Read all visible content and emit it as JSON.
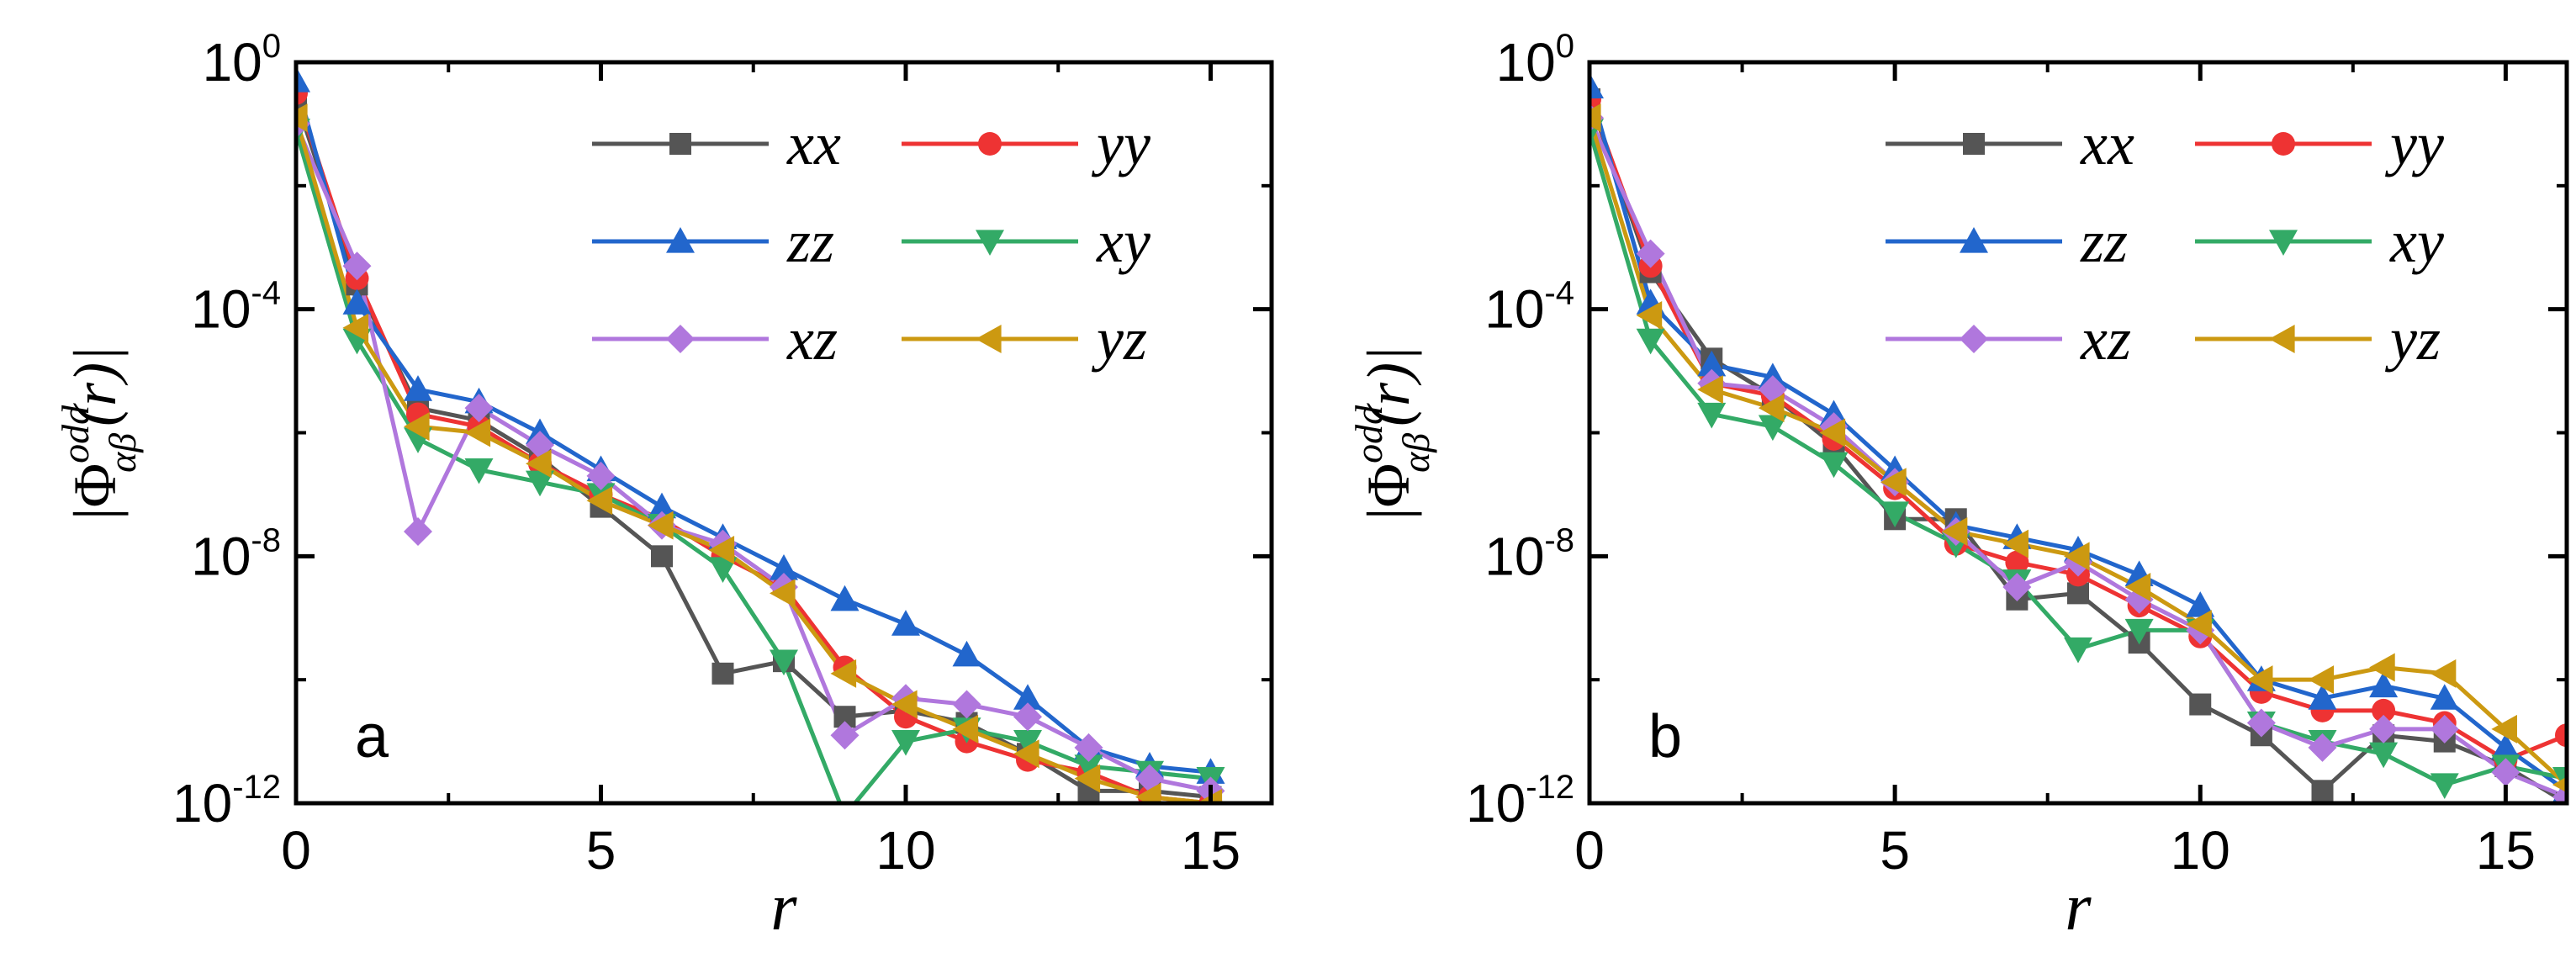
{
  "figure": {
    "ylabel": "|Φ^{odd}_{αβ}(r)|",
    "xlabel": "r"
  },
  "chart_data": [
    {
      "type": "line",
      "panel": "a",
      "xlabel": "r",
      "ylabel": "|Φ^{odd}_{αβ}(r)|",
      "xlim": [
        0,
        16
      ],
      "ylim_log10": [
        -12,
        0
      ],
      "xticks": [
        0,
        5,
        10,
        15
      ],
      "yticks": [
        {
          "base": "10",
          "exp": "0",
          "value": 0
        },
        {
          "base": "10",
          "exp": "-4",
          "value": -4
        },
        {
          "base": "10",
          "exp": "-8",
          "value": -8
        },
        {
          "base": "10",
          "exp": "-12",
          "value": -12
        }
      ],
      "x": [
        0,
        1,
        2,
        3,
        4,
        5,
        6,
        7,
        8,
        9,
        10,
        11,
        12,
        13,
        14,
        15
      ],
      "series": [
        {
          "name": "xx",
          "color": "#555555",
          "marker": "square",
          "log10_values": [
            -0.6,
            -3.6,
            -5.6,
            -5.8,
            -6.4,
            -7.2,
            -8.0,
            -9.9,
            -9.7,
            -10.6,
            -10.5,
            -10.7,
            -11.2,
            -11.8,
            -11.8,
            -11.9
          ]
        },
        {
          "name": "yy",
          "color": "#ee3333",
          "marker": "circle",
          "log10_values": [
            -0.5,
            -3.5,
            -5.7,
            -5.9,
            -6.5,
            -7.0,
            -7.4,
            -8.0,
            -8.5,
            -9.8,
            -10.6,
            -11.0,
            -11.3,
            -11.5,
            -11.9,
            -12.0
          ]
        },
        {
          "name": "zz",
          "color": "#2266cc",
          "marker": "triangle-up",
          "log10_values": [
            -0.3,
            -3.9,
            -5.3,
            -5.5,
            -6.0,
            -6.6,
            -7.2,
            -7.7,
            -8.2,
            -8.7,
            -9.1,
            -9.6,
            -10.3,
            -11.1,
            -11.4,
            -11.5
          ]
        },
        {
          "name": "xy",
          "color": "#33aa66",
          "marker": "triangle-down",
          "log10_values": [
            -1.1,
            -4.5,
            -6.1,
            -6.6,
            -6.8,
            -7.0,
            -7.5,
            -8.2,
            -9.7,
            -12.2,
            -11.0,
            -10.8,
            -11.0,
            -11.4,
            -11.5,
            -11.6
          ]
        },
        {
          "name": "xz",
          "color": "#b077dd",
          "marker": "diamond",
          "log10_values": [
            -1.0,
            -3.3,
            -7.6,
            -5.6,
            -6.2,
            -6.7,
            -7.5,
            -7.8,
            -8.5,
            -10.9,
            -10.3,
            -10.4,
            -10.6,
            -11.1,
            -11.6,
            -11.8
          ]
        },
        {
          "name": "yz",
          "color": "#cc9911",
          "marker": "triangle-left",
          "log10_values": [
            -0.9,
            -4.3,
            -5.9,
            -6.0,
            -6.5,
            -7.1,
            -7.5,
            -7.9,
            -8.6,
            -9.9,
            -10.4,
            -10.8,
            -11.2,
            -11.6,
            -11.9,
            -12.0
          ]
        }
      ],
      "legend": "upper-right, 2 columns",
      "annotation": "a"
    },
    {
      "type": "line",
      "panel": "b",
      "xlabel": "r",
      "ylabel": "|Φ^{odd}_{αβ}(r)|",
      "xlim": [
        0,
        16
      ],
      "ylim_log10": [
        -12,
        0
      ],
      "xticks": [
        0,
        5,
        10,
        15
      ],
      "yticks": [
        {
          "base": "10",
          "exp": "0",
          "value": 0
        },
        {
          "base": "10",
          "exp": "-4",
          "value": -4
        },
        {
          "base": "10",
          "exp": "-8",
          "value": -8
        },
        {
          "base": "10",
          "exp": "-12",
          "value": -12
        }
      ],
      "x": [
        0,
        1,
        2,
        3,
        4,
        5,
        6,
        7,
        8,
        9,
        10,
        11,
        12,
        13,
        14,
        15,
        16
      ],
      "series": [
        {
          "name": "xx",
          "color": "#555555",
          "marker": "square",
          "log10_values": [
            -0.6,
            -3.4,
            -4.8,
            -5.4,
            -6.2,
            -7.4,
            -7.4,
            -8.7,
            -8.6,
            -9.4,
            -10.4,
            -10.9,
            -11.8,
            -10.9,
            -11.0,
            -11.4,
            -12.0
          ]
        },
        {
          "name": "yy",
          "color": "#ee3333",
          "marker": "circle",
          "log10_values": [
            -0.6,
            -3.3,
            -5.2,
            -5.4,
            -6.1,
            -6.9,
            -7.8,
            -8.1,
            -8.3,
            -8.8,
            -9.3,
            -10.2,
            -10.5,
            -10.5,
            -10.7,
            -11.3,
            -10.9
          ]
        },
        {
          "name": "zz",
          "color": "#2266cc",
          "marker": "triangle-up",
          "log10_values": [
            -0.4,
            -3.9,
            -4.9,
            -5.1,
            -5.7,
            -6.6,
            -7.5,
            -7.7,
            -7.9,
            -8.3,
            -8.8,
            -10.0,
            -10.3,
            -10.1,
            -10.3,
            -11.1,
            -11.8
          ]
        },
        {
          "name": "xy",
          "color": "#33aa66",
          "marker": "triangle-down",
          "log10_values": [
            -1.1,
            -4.5,
            -5.7,
            -5.9,
            -6.5,
            -7.3,
            -7.8,
            -8.4,
            -9.5,
            -9.2,
            -9.2,
            -10.7,
            -11.0,
            -11.2,
            -11.7,
            -11.4,
            -11.6
          ]
        },
        {
          "name": "xz",
          "color": "#b077dd",
          "marker": "diamond",
          "log10_values": [
            -0.9,
            -3.1,
            -5.2,
            -5.3,
            -5.9,
            -6.8,
            -7.6,
            -8.5,
            -8.1,
            -8.7,
            -9.2,
            -10.7,
            -11.1,
            -10.8,
            -10.8,
            -11.5,
            -11.9
          ]
        },
        {
          "name": "yz",
          "color": "#cc9911",
          "marker": "triangle-left",
          "log10_values": [
            -0.9,
            -4.1,
            -5.3,
            -5.6,
            -6.0,
            -6.8,
            -7.6,
            -7.8,
            -8.0,
            -8.5,
            -9.1,
            -10.0,
            -10.0,
            -9.8,
            -9.9,
            -10.8,
            -11.7
          ]
        }
      ],
      "legend": "upper-right, 2 columns",
      "annotation": "b"
    }
  ]
}
